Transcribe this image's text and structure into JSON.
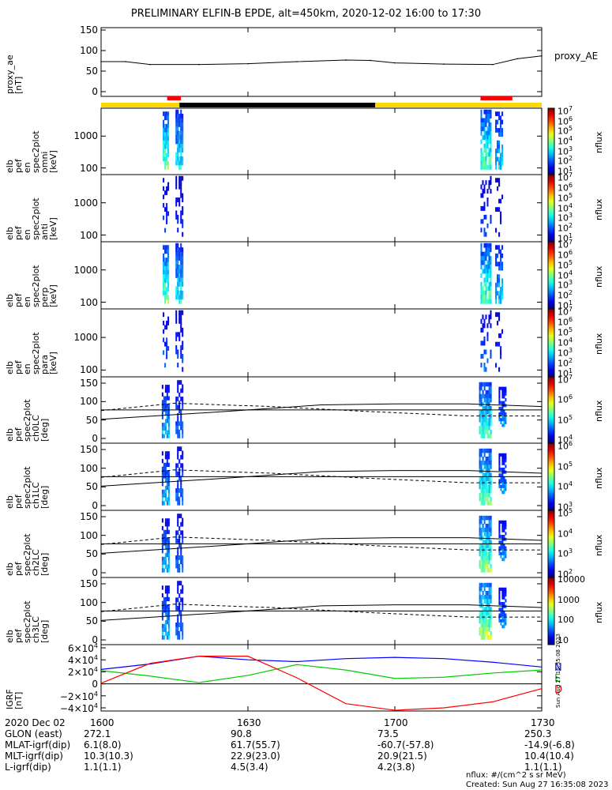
{
  "title": "PRELIMINARY ELFIN-B EPDE, alt=450km, 2020-12-02 16:00 to 17:30",
  "panels": [
    {
      "id": "ae",
      "ylabel": [
        "proxy_ae",
        "[nT]"
      ],
      "yticks": [
        "150",
        "100",
        "50",
        "0"
      ],
      "side_label": "proxy_AE"
    },
    {
      "id": "en_omni",
      "ylabel": [
        "elb",
        "pef",
        "en",
        "spec2plot",
        "omni",
        "[keV]"
      ],
      "yticks": [
        "1000",
        "100"
      ],
      "cbar_ticks": [
        "10^7",
        "10^6",
        "10^5",
        "10^4",
        "10^3",
        "10^2",
        "10^1"
      ],
      "cbar_label": "nflux"
    },
    {
      "id": "en_anti",
      "ylabel": [
        "elb",
        "pef",
        "en",
        "spec2plot",
        "anti",
        "[keV]"
      ],
      "yticks": [
        "1000",
        "100"
      ],
      "cbar_ticks": [
        "10^7",
        "10^6",
        "10^5",
        "10^4",
        "10^3",
        "10^2",
        "10^1"
      ],
      "cbar_label": "nflux"
    },
    {
      "id": "en_perp",
      "ylabel": [
        "elb",
        "pef",
        "en",
        "spec2plot",
        "perp",
        "[keV]"
      ],
      "yticks": [
        "1000",
        "100"
      ],
      "cbar_ticks": [
        "10^7",
        "10^6",
        "10^5",
        "10^4",
        "10^3",
        "10^2",
        "10^1"
      ],
      "cbar_label": "nflux"
    },
    {
      "id": "en_para",
      "ylabel": [
        "elb",
        "pef",
        "en",
        "spec2plot",
        "para",
        "[keV]"
      ],
      "yticks": [
        "1000",
        "100"
      ],
      "cbar_ticks": [
        "10^7",
        "10^6",
        "10^5",
        "10^4",
        "10^3",
        "10^2",
        "10^1"
      ],
      "cbar_label": "nflux"
    },
    {
      "id": "ch0",
      "ylabel": [
        "elb",
        "pef",
        "spec2plot",
        "ch0LC",
        "[deg]"
      ],
      "yticks": [
        "150",
        "100",
        "50",
        "0"
      ],
      "cbar_ticks": [
        "10^7",
        "10^6",
        "10^5",
        "10^4"
      ],
      "cbar_label": "nflux"
    },
    {
      "id": "ch1",
      "ylabel": [
        "elb",
        "pef",
        "spec2plot",
        "ch1LC",
        "[deg]"
      ],
      "yticks": [
        "150",
        "100",
        "50",
        "0"
      ],
      "cbar_ticks": [
        "10^6",
        "10^5",
        "10^4",
        "10^3"
      ],
      "cbar_label": "nflux"
    },
    {
      "id": "ch2",
      "ylabel": [
        "elb",
        "pef",
        "spec2plot",
        "ch2LC",
        "[deg]"
      ],
      "yticks": [
        "150",
        "100",
        "50",
        "0"
      ],
      "cbar_ticks": [
        "10^5",
        "10^4",
        "10^3",
        "10^2"
      ],
      "cbar_label": "nflux"
    },
    {
      "id": "ch3",
      "ylabel": [
        "elb",
        "pef",
        "spec2plot",
        "ch3LC",
        "[deg]"
      ],
      "yticks": [
        "150",
        "100",
        "50",
        "0"
      ],
      "cbar_ticks": [
        "10000",
        "1000",
        "100",
        "10"
      ],
      "cbar_label": "nflux"
    },
    {
      "id": "igrf",
      "ylabel": [
        "IGRF",
        "[nT]"
      ],
      "yticks": [
        "6×10^4",
        "4×10^4",
        "2×10^4",
        "0",
        "−2×10^4",
        "−4×10^4"
      ],
      "legend": [
        "N",
        "E",
        "D"
      ]
    }
  ],
  "xticks": [
    "1600",
    "1630",
    "1700",
    "1730"
  ],
  "ephemeris": [
    {
      "name": "2020 Dec 02",
      "values": [
        "1600",
        "1630",
        "1700",
        "1730"
      ]
    },
    {
      "name": "GLON (east)",
      "values": [
        "272.1",
        "90.8",
        "73.5",
        "250.3"
      ]
    },
    {
      "name": "MLAT-igrf(dip)",
      "values": [
        "6.1(8.0)",
        "61.7(55.7)",
        "-60.7(-57.8)",
        "-14.9(-6.8)"
      ]
    },
    {
      "name": "MLT-igrf(dip)",
      "values": [
        "10.3(10.3)",
        "22.9(23.0)",
        "20.9(21.5)",
        "10.4(10.4)"
      ]
    },
    {
      "name": "L-igrf(dip)",
      "values": [
        "1.1(1.1)",
        "4.5(3.4)",
        "4.2(3.8)",
        "1.1(1.1)"
      ]
    }
  ],
  "footer": {
    "units": "nflux: #/(cm^2 s sr MeV)",
    "created": "Created: Sun Aug 27 16:35:08 2023",
    "stamp": "Sun Aug 27 16:35:08 2023"
  },
  "colors": {
    "N": "#0000ff",
    "E": "#00cc00",
    "D": "#ff0000",
    "sun": "#ffd700",
    "shadow": "#000000",
    "flag": "#ff0000"
  },
  "chart_data": {
    "type": "line",
    "x_range": [
      "16:00",
      "17:30"
    ],
    "series": [
      {
        "name": "proxy_AE",
        "panel": "ae",
        "x": [
          0,
          5,
          10,
          20,
          30,
          40,
          50,
          55,
          60,
          70,
          80,
          85,
          90
        ],
        "values": [
          73,
          73,
          66,
          66,
          68,
          73,
          77,
          76,
          70,
          67,
          66,
          80,
          87
        ]
      },
      {
        "name": "N",
        "panel": "igrf",
        "x": [
          0,
          10,
          20,
          30,
          40,
          50,
          60,
          70,
          80,
          90
        ],
        "values": [
          24000,
          33000,
          46000,
          40000,
          37000,
          42000,
          44000,
          42000,
          36000,
          28000
        ]
      },
      {
        "name": "E",
        "panel": "igrf",
        "x": [
          0,
          10,
          20,
          30,
          40,
          50,
          60,
          70,
          80,
          90
        ],
        "values": [
          22000,
          13000,
          2000,
          14000,
          32000,
          23000,
          9000,
          11000,
          18000,
          23000
        ]
      },
      {
        "name": "D",
        "panel": "igrf",
        "x": [
          0,
          10,
          20,
          30,
          40,
          50,
          60,
          70,
          80,
          90
        ],
        "values": [
          1000,
          34000,
          46000,
          46000,
          10000,
          -33000,
          -44000,
          -40000,
          -30000,
          -8000
        ]
      }
    ]
  }
}
